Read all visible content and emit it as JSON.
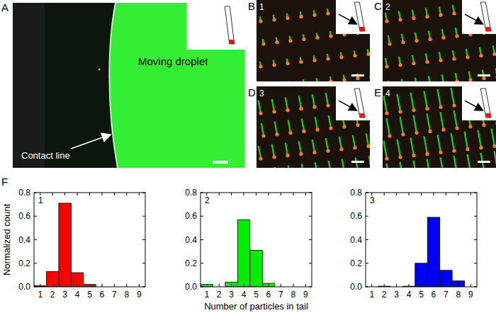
{
  "image_panels": [
    {
      "label": "A",
      "texts": [
        "Moving droplet",
        "Contact line"
      ]
    },
    {
      "label": "B",
      "number": "1"
    },
    {
      "label": "C",
      "number": "2"
    },
    {
      "label": "D",
      "number": "3"
    },
    {
      "label": "E",
      "number": "4"
    }
  ],
  "panel_f": {
    "label": "F"
  },
  "chart_data": [
    {
      "type": "histogram",
      "title": "1",
      "ylabel": "Normalized count",
      "color": "#ff0000",
      "bins": [
        0.5,
        1.5,
        2.5,
        3.5,
        4.5,
        5.5,
        6.5,
        7.5,
        8.5,
        9.5
      ],
      "counts": [
        0.01,
        0.13,
        0.71,
        0.12,
        0.02,
        0,
        0,
        0,
        0
      ],
      "xlim": [
        0.5,
        9.5
      ],
      "xticks": [
        1,
        2,
        3,
        4,
        5,
        6,
        7,
        8,
        9
      ],
      "ylim": [
        0,
        0.8
      ],
      "yticks": [
        {
          "value": 0,
          "label": "0.0"
        },
        0.2,
        0.4,
        0.6,
        0.8
      ]
    },
    {
      "type": "histogram",
      "title": "2",
      "xlabel": "Number of particles in tail",
      "color": "#00ee00",
      "bins": [
        0.5,
        1.5,
        2.5,
        3.5,
        4.5,
        5.5,
        6.5,
        7.5,
        8.5,
        9.5
      ],
      "counts": [
        0.02,
        0,
        0.04,
        0.57,
        0.31,
        0.03,
        0,
        0,
        0
      ],
      "xlim": [
        0.5,
        9.5
      ],
      "xticks": [
        1,
        2,
        3,
        4,
        5,
        6,
        7,
        8,
        9
      ],
      "ylim": [
        0,
        0.8
      ],
      "yticks": [
        {
          "value": 0,
          "label": "0.0"
        },
        0.2,
        0.4,
        0.6,
        0.8
      ]
    },
    {
      "type": "histogram",
      "title": "3",
      "color": "#0000ff",
      "bins": [
        0.5,
        1.5,
        2.5,
        3.5,
        4.5,
        5.5,
        6.5,
        7.5,
        8.5,
        9.5
      ],
      "counts": [
        0,
        0.005,
        0,
        0.005,
        0.2,
        0.59,
        0.14,
        0.05,
        0
      ],
      "xlim": [
        0.5,
        9.5
      ],
      "xticks": [
        1,
        2,
        3,
        4,
        5,
        6,
        7,
        8,
        9
      ],
      "ylim": [
        0,
        0.8
      ],
      "yticks": [
        {
          "value": 0,
          "label": "0.0"
        },
        0.2,
        0.4,
        0.6,
        0.8
      ]
    }
  ]
}
